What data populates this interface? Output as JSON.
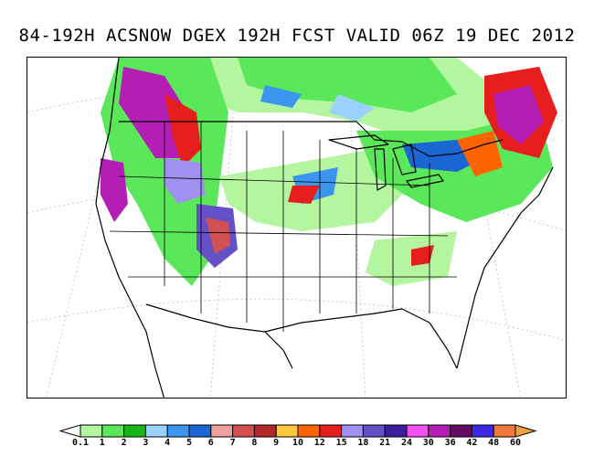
{
  "title": "84-192H ACSNOW DGEX 192H FCST VALID 06Z 19 DEC 2012",
  "legend": {
    "labels": [
      "0.1",
      "1",
      "2",
      "3",
      "4",
      "5",
      "6",
      "7",
      "8",
      "9",
      "10",
      "12",
      "15",
      "18",
      "21",
      "24",
      "30",
      "36",
      "42",
      "48",
      "60"
    ],
    "colors": [
      "#b4f5a0",
      "#5ae85a",
      "#18b418",
      "#9ad2ff",
      "#3c96f0",
      "#1a66d2",
      "#f0a0a0",
      "#d25050",
      "#b42828",
      "#ffc83c",
      "#ff6400",
      "#e61e1e",
      "#a090f0",
      "#6650c8",
      "#3c1e9c",
      "#f050f0",
      "#b41eb4",
      "#640a64",
      "#3c28e6",
      "#f0783c"
    ],
    "end_arrow_color": "#f0a040"
  },
  "map": {
    "region_labels": [],
    "colors": {
      "land_background": "#ffffff",
      "borders": "#000000",
      "gridlines": "#c8c8c8"
    }
  }
}
